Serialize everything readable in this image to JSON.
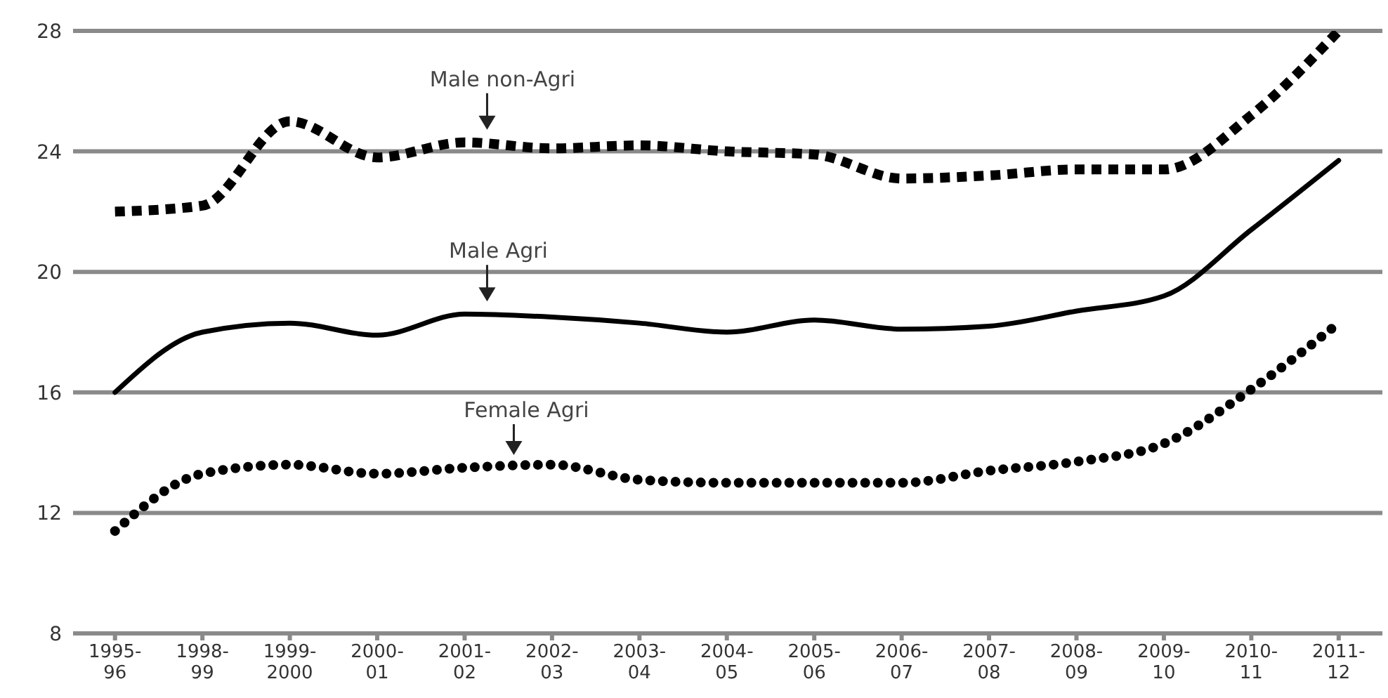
{
  "chart_data": {
    "type": "line",
    "categories": [
      "1995-96",
      "1998-99",
      "1999-2000",
      "2000-01",
      "2001-02",
      "2002-03",
      "2003-04",
      "2004-05",
      "2005-06",
      "2006-07",
      "2007-08",
      "2008-09",
      "2009-10",
      "2010-11",
      "2011-12"
    ],
    "series": [
      {
        "name": "Male non-Agri",
        "color": "#000000",
        "line_style": "dashed",
        "values": [
          22.0,
          22.2,
          25.0,
          23.8,
          24.3,
          24.1,
          24.2,
          24.0,
          23.9,
          23.1,
          23.2,
          23.4,
          23.4,
          25.2,
          28.0
        ]
      },
      {
        "name": "Male Agri",
        "color": "#000000",
        "line_style": "solid",
        "values": [
          16.0,
          18.0,
          18.3,
          17.9,
          18.6,
          18.5,
          18.3,
          18.0,
          18.4,
          18.1,
          18.2,
          18.7,
          19.2,
          21.4,
          23.7
        ]
      },
      {
        "name": "Female Agri",
        "color": "#000000",
        "line_style": "dotted",
        "values": [
          11.4,
          13.3,
          13.6,
          13.3,
          13.5,
          13.6,
          13.1,
          13.0,
          13.0,
          13.0,
          13.4,
          13.7,
          14.3,
          16.1,
          18.3
        ]
      }
    ],
    "ylim": [
      8,
      28
    ],
    "yticks": [
      8,
      12,
      16,
      20,
      24,
      28
    ],
    "grid": "y",
    "marker": "none",
    "legend": false
  }
}
